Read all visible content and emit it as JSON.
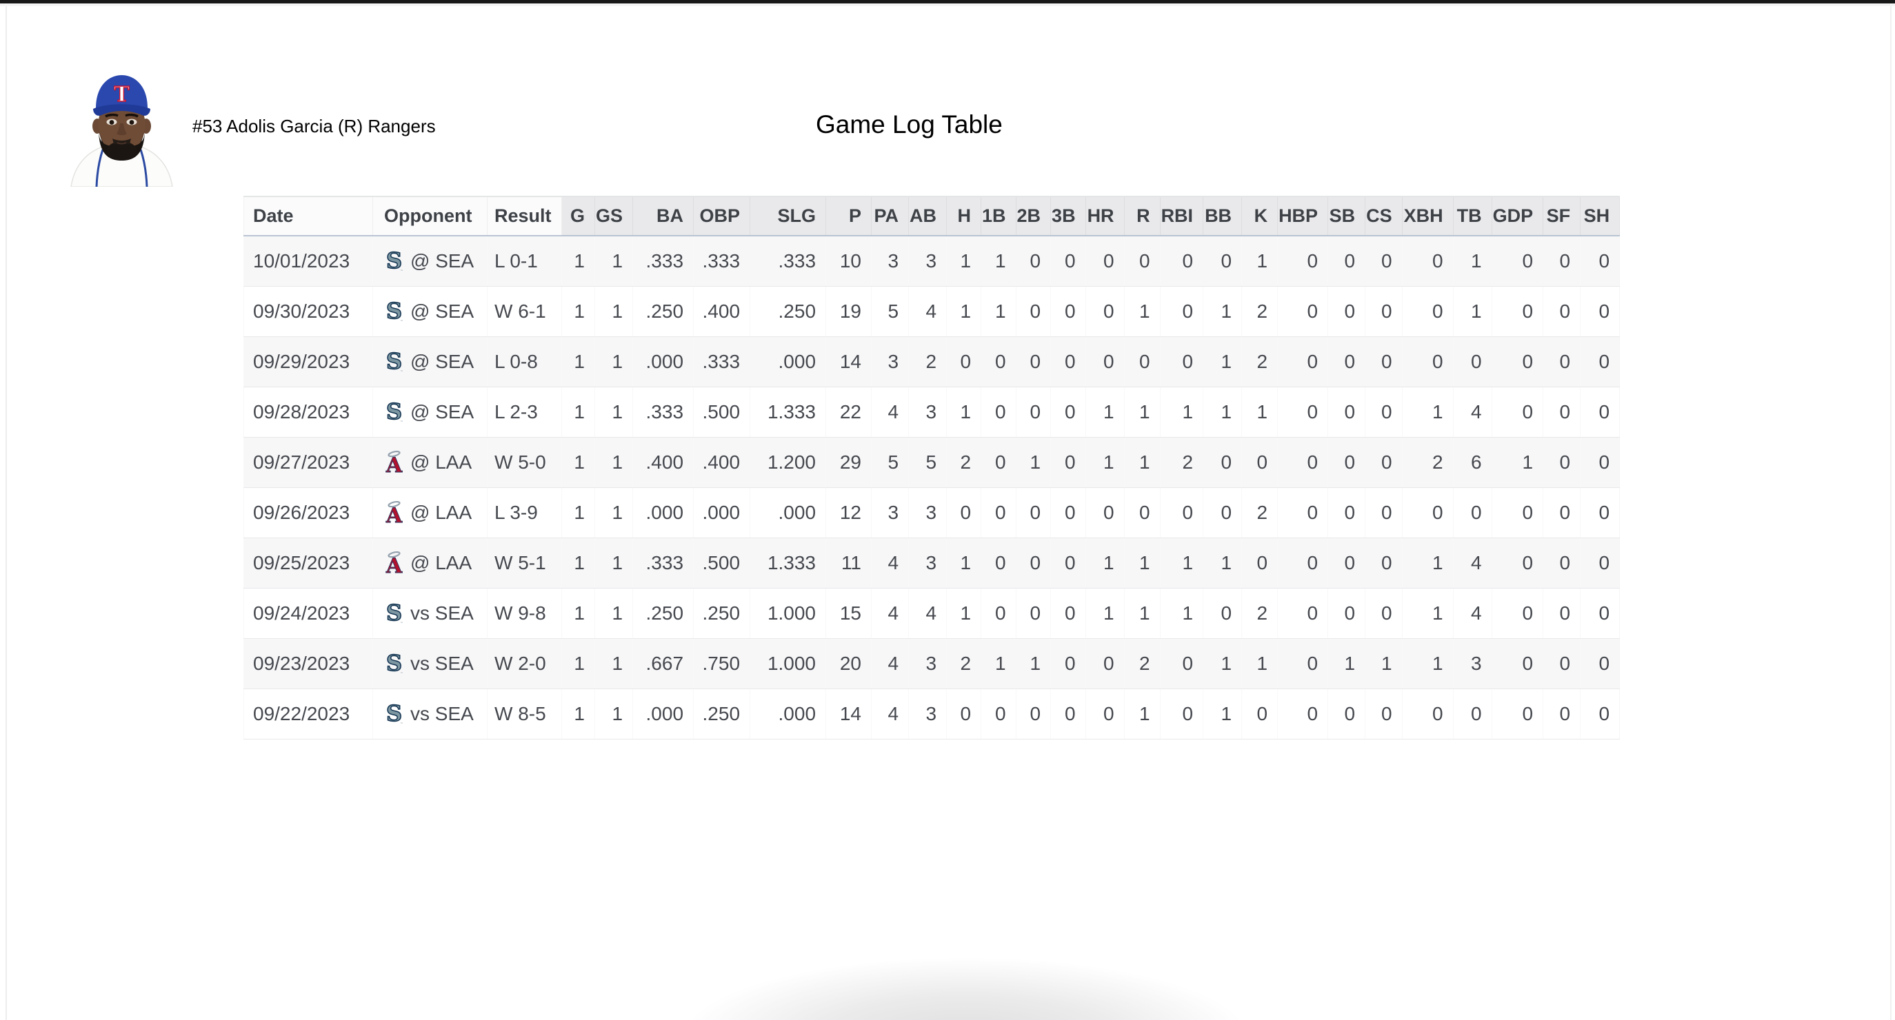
{
  "page": {
    "title": "Game Log Table"
  },
  "player": {
    "headline": "#53 Adolis Garcia (R) Rangers",
    "number": "53",
    "name": "Adolis Garcia",
    "bats": "(R)",
    "team": "Rangers",
    "cap_letter": "T"
  },
  "teams": {
    "SEA": {
      "logo_icon": "mariners-s-logo-icon",
      "primary": "#5d7f8d",
      "outline": "#10314f"
    },
    "LAA": {
      "logo_icon": "angels-a-logo-icon",
      "primary": "#b3122f",
      "halo": "#94a1ad"
    },
    "TEX": {
      "cap_color": "#2447ad",
      "cap_letter_color": "#ffffff",
      "cap_letter_outline": "#c8102e"
    }
  },
  "colors": {
    "top_bar": "#181818",
    "header_stat_bg": "#e9e9eb",
    "header_bottom_border": "#b9c4d1",
    "row_stripe": "#f7f7f8",
    "row_border": "#e8e8ea",
    "cell_text": "#45484e",
    "header_text": "#3e4247"
  },
  "table": {
    "columns": [
      "Date",
      "Opponent",
      "Result",
      "G",
      "GS",
      "BA",
      "OBP",
      "SLG",
      "P",
      "PA",
      "AB",
      "H",
      "1B",
      "2B",
      "3B",
      "HR",
      "R",
      "RBI",
      "BB",
      "K",
      "HBP",
      "SB",
      "CS",
      "XBH",
      "TB",
      "GDP",
      "SF",
      "SH"
    ],
    "rows": [
      {
        "date": "10/01/2023",
        "team": "SEA",
        "opponent": "@ SEA",
        "result": "L 0-1",
        "stats": [
          "1",
          "1",
          ".333",
          ".333",
          ".333",
          "10",
          "3",
          "3",
          "1",
          "1",
          "0",
          "0",
          "0",
          "0",
          "0",
          "0",
          "1",
          "0",
          "0",
          "0",
          "0",
          "1",
          "0",
          "0",
          "0"
        ]
      },
      {
        "date": "09/30/2023",
        "team": "SEA",
        "opponent": "@ SEA",
        "result": "W 6-1",
        "stats": [
          "1",
          "1",
          ".250",
          ".400",
          ".250",
          "19",
          "5",
          "4",
          "1",
          "1",
          "0",
          "0",
          "0",
          "1",
          "0",
          "1",
          "2",
          "0",
          "0",
          "0",
          "0",
          "1",
          "0",
          "0",
          "0"
        ]
      },
      {
        "date": "09/29/2023",
        "team": "SEA",
        "opponent": "@ SEA",
        "result": "L 0-8",
        "stats": [
          "1",
          "1",
          ".000",
          ".333",
          ".000",
          "14",
          "3",
          "2",
          "0",
          "0",
          "0",
          "0",
          "0",
          "0",
          "0",
          "1",
          "2",
          "0",
          "0",
          "0",
          "0",
          "0",
          "0",
          "0",
          "0"
        ]
      },
      {
        "date": "09/28/2023",
        "team": "SEA",
        "opponent": "@ SEA",
        "result": "L 2-3",
        "stats": [
          "1",
          "1",
          ".333",
          ".500",
          "1.333",
          "22",
          "4",
          "3",
          "1",
          "0",
          "0",
          "0",
          "1",
          "1",
          "1",
          "1",
          "1",
          "0",
          "0",
          "0",
          "1",
          "4",
          "0",
          "0",
          "0"
        ]
      },
      {
        "date": "09/27/2023",
        "team": "LAA",
        "opponent": "@ LAA",
        "result": "W 5-0",
        "stats": [
          "1",
          "1",
          ".400",
          ".400",
          "1.200",
          "29",
          "5",
          "5",
          "2",
          "0",
          "1",
          "0",
          "1",
          "1",
          "2",
          "0",
          "0",
          "0",
          "0",
          "0",
          "2",
          "6",
          "1",
          "0",
          "0"
        ]
      },
      {
        "date": "09/26/2023",
        "team": "LAA",
        "opponent": "@ LAA",
        "result": "L 3-9",
        "stats": [
          "1",
          "1",
          ".000",
          ".000",
          ".000",
          "12",
          "3",
          "3",
          "0",
          "0",
          "0",
          "0",
          "0",
          "0",
          "0",
          "0",
          "2",
          "0",
          "0",
          "0",
          "0",
          "0",
          "0",
          "0",
          "0"
        ]
      },
      {
        "date": "09/25/2023",
        "team": "LAA",
        "opponent": "@ LAA",
        "result": "W 5-1",
        "stats": [
          "1",
          "1",
          ".333",
          ".500",
          "1.333",
          "11",
          "4",
          "3",
          "1",
          "0",
          "0",
          "0",
          "1",
          "1",
          "1",
          "1",
          "0",
          "0",
          "0",
          "0",
          "1",
          "4",
          "0",
          "0",
          "0"
        ]
      },
      {
        "date": "09/24/2023",
        "team": "SEA",
        "opponent": "vs SEA",
        "result": "W 9-8",
        "stats": [
          "1",
          "1",
          ".250",
          ".250",
          "1.000",
          "15",
          "4",
          "4",
          "1",
          "0",
          "0",
          "0",
          "1",
          "1",
          "1",
          "0",
          "2",
          "0",
          "0",
          "0",
          "1",
          "4",
          "0",
          "0",
          "0"
        ]
      },
      {
        "date": "09/23/2023",
        "team": "SEA",
        "opponent": "vs SEA",
        "result": "W 2-0",
        "stats": [
          "1",
          "1",
          ".667",
          ".750",
          "1.000",
          "20",
          "4",
          "3",
          "2",
          "1",
          "1",
          "0",
          "0",
          "2",
          "0",
          "1",
          "1",
          "0",
          "1",
          "1",
          "1",
          "3",
          "0",
          "0",
          "0"
        ]
      },
      {
        "date": "09/22/2023",
        "team": "SEA",
        "opponent": "vs SEA",
        "result": "W 8-5",
        "stats": [
          "1",
          "1",
          ".000",
          ".250",
          ".000",
          "14",
          "4",
          "3",
          "0",
          "0",
          "0",
          "0",
          "0",
          "1",
          "0",
          "1",
          "0",
          "0",
          "0",
          "0",
          "0",
          "0",
          "0",
          "0",
          "0"
        ]
      }
    ]
  }
}
